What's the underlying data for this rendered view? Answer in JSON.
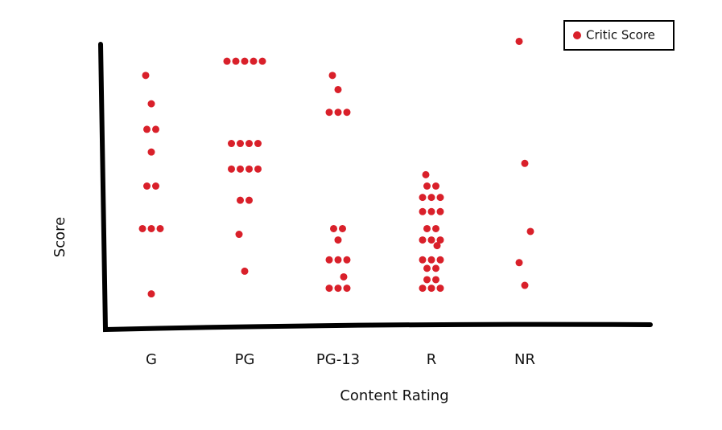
{
  "chart_data": {
    "type": "strip",
    "x_label": "Content Rating",
    "y_label": "Score",
    "categories": [
      "G",
      "PG",
      "PG-13",
      "R",
      "NR"
    ],
    "series": [
      {
        "name": "Critic Score",
        "color": "#d9202a",
        "values": [
          [
            89,
            79,
            70,
            70,
            62,
            50,
            50,
            35,
            35,
            35,
            12
          ],
          [
            94,
            94,
            94,
            94,
            94,
            65,
            65,
            65,
            65,
            56,
            56,
            56,
            56,
            45,
            45,
            33,
            20
          ],
          [
            89,
            84,
            76,
            76,
            76,
            35,
            35,
            31,
            24,
            24,
            24,
            18,
            14,
            14,
            14
          ],
          [
            54,
            50,
            50,
            46,
            46,
            46,
            41,
            41,
            41,
            35,
            35,
            31,
            31,
            31,
            29,
            24,
            24,
            24,
            21,
            21,
            17,
            17,
            14,
            14,
            14
          ],
          [
            101,
            58,
            34,
            23,
            15
          ]
        ]
      }
    ],
    "ylim": [
      0,
      100
    ],
    "legend": "top-right"
  }
}
